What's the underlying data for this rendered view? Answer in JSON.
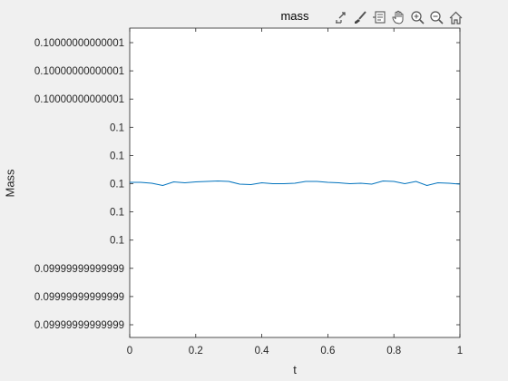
{
  "figure": {
    "toolbar": {
      "icons": [
        "export-icon",
        "brush-icon",
        "data-tips-icon",
        "pan-icon",
        "zoom-in-icon",
        "zoom-out-icon",
        "home-icon"
      ]
    }
  },
  "chart_data": {
    "type": "line",
    "title": "mass",
    "xlabel": "t",
    "ylabel": "Mass",
    "xlim": [
      0,
      1
    ],
    "x_ticks": [
      "0",
      "0.2",
      "0.4",
      "0.6",
      "0.8",
      "1"
    ],
    "y_ticks": [
      "0.10000000000001",
      "0.10000000000001",
      "0.10000000000001",
      "0.1",
      "0.1",
      "0.1",
      "0.1",
      "0.1",
      "0.09999999999999",
      "0.09999999999999",
      "0.09999999999999"
    ],
    "grid": false,
    "series": [
      {
        "color": "#0072bd",
        "x": [
          0,
          0.033,
          0.067,
          0.1,
          0.133,
          0.167,
          0.2,
          0.233,
          0.267,
          0.3,
          0.333,
          0.367,
          0.4,
          0.433,
          0.467,
          0.5,
          0.533,
          0.567,
          0.6,
          0.633,
          0.667,
          0.7,
          0.733,
          0.767,
          0.8,
          0.833,
          0.867,
          0.9,
          0.933,
          0.967,
          1.0
        ],
        "y": [
          0.1,
          0.1,
          0.1,
          0.1,
          0.1,
          0.1,
          0.1,
          0.1,
          0.1,
          0.1,
          0.1,
          0.1,
          0.1,
          0.1,
          0.1,
          0.1,
          0.1,
          0.1,
          0.1,
          0.1,
          0.1,
          0.1,
          0.1,
          0.1,
          0.1,
          0.1,
          0.1,
          0.1,
          0.1,
          0.1,
          0.1
        ],
        "y_offset": [
          0.3,
          0.3,
          0.1,
          -0.4,
          0.4,
          0.2,
          0.4,
          0.5,
          0.6,
          0.5,
          -0.1,
          -0.2,
          0.2,
          0.0,
          0.0,
          0.1,
          0.5,
          0.5,
          0.3,
          0.2,
          0.0,
          0.1,
          -0.1,
          0.6,
          0.5,
          0.0,
          0.5,
          -0.4,
          0.2,
          0.1,
          -0.1
        ]
      }
    ]
  }
}
